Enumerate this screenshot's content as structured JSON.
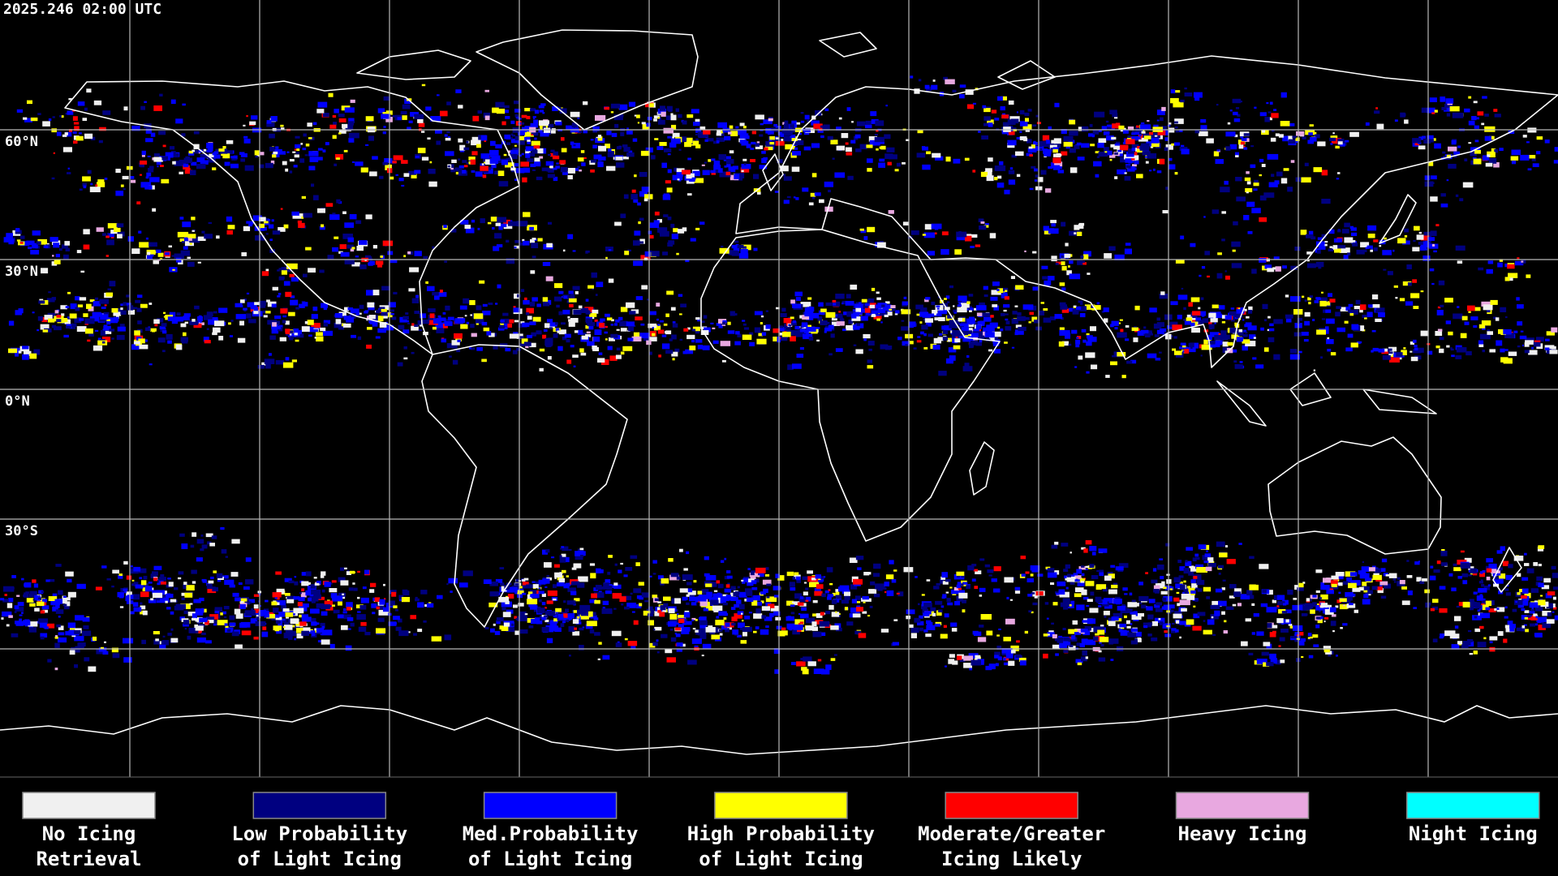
{
  "timestamp": "2025.246 02:00 UTC",
  "map": {
    "latitude_labels": [
      "60°N",
      "30°N",
      "0°N",
      "30°S"
    ]
  },
  "legend": {
    "items": [
      {
        "lines": [
          "No Icing",
          "Retrieval"
        ],
        "color": "#f0f0f0"
      },
      {
        "lines": [
          "Low Probability",
          "of Light Icing"
        ],
        "color": "#000080"
      },
      {
        "lines": [
          "Med.Probability",
          "of Light Icing"
        ],
        "color": "#0000ff"
      },
      {
        "lines": [
          "High Probability",
          "of Light Icing"
        ],
        "color": "#ffff00"
      },
      {
        "lines": [
          "Moderate/Greater",
          "Icing Likely"
        ],
        "color": "#ff0000"
      },
      {
        "lines": [
          "Heavy Icing"
        ],
        "color": "#e8a8e0"
      },
      {
        "lines": [
          "Night Icing"
        ],
        "color": "#00ffff"
      }
    ]
  }
}
